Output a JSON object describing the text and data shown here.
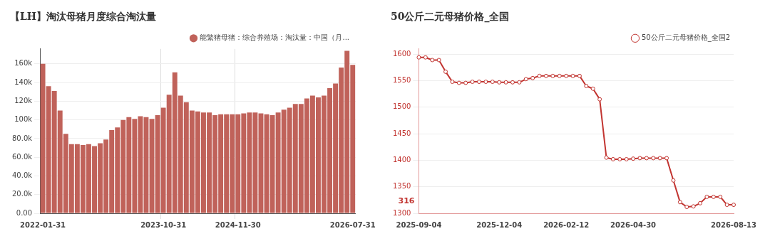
{
  "chart_data": [
    {
      "type": "bar",
      "title": "【LH】淘汰母猪月度综合淘汰量",
      "categories": [
        "2022-01-31",
        null,
        null,
        null,
        null,
        null,
        null,
        null,
        null,
        null,
        null,
        null,
        null,
        null,
        null,
        null,
        null,
        null,
        null,
        null,
        null,
        "2023-10-31",
        null,
        null,
        null,
        null,
        null,
        null,
        null,
        null,
        null,
        null,
        null,
        null,
        "2024-11-30",
        null,
        null,
        null,
        null,
        null,
        null,
        null,
        null,
        null,
        null,
        null,
        null,
        null,
        null,
        null,
        null,
        null,
        null,
        null,
        "2026-07-31"
      ],
      "series": [
        {
          "name": "能繁猪母猪：综合养殖场：淘汰量：中国（月...",
          "color": "#c0625a",
          "values": [
            160000,
            136000,
            131000,
            110000,
            85000,
            74000,
            74000,
            73000,
            74000,
            72000,
            75000,
            79000,
            89000,
            92000,
            100000,
            103000,
            101000,
            104000,
            103000,
            101000,
            105000,
            113000,
            127000,
            151000,
            126000,
            119000,
            110000,
            109000,
            108000,
            108000,
            105000,
            106000,
            106000,
            106000,
            106000,
            107000,
            108000,
            108000,
            107000,
            106000,
            105000,
            108000,
            111000,
            113000,
            117000,
            117000,
            123000,
            126000,
            124000,
            126000,
            134000,
            139000,
            156000,
            174000,
            159000
          ]
        }
      ],
      "ylim": [
        0,
        176000
      ],
      "yticks": [
        {
          "value": 0,
          "label": "0.00"
        },
        {
          "value": 20000,
          "label": "20.0k"
        },
        {
          "value": 40000,
          "label": "40.0k"
        },
        {
          "value": 60000,
          "label": "60.0k"
        },
        {
          "value": 80000,
          "label": "80.0k"
        },
        {
          "value": 100000,
          "label": "100k"
        },
        {
          "value": 120000,
          "label": "120k"
        },
        {
          "value": 140000,
          "label": "140k"
        },
        {
          "value": 160000,
          "label": "160k"
        }
      ],
      "grid": true,
      "legend": "top",
      "marker": "circle"
    },
    {
      "type": "line",
      "title": "50公斤二元母猪价格_全国",
      "categories": [
        "2025-09-04",
        null,
        null,
        null,
        null,
        null,
        null,
        null,
        null,
        null,
        null,
        null,
        "2025-12-04",
        null,
        null,
        null,
        null,
        null,
        null,
        null,
        null,
        null,
        "2026-02-12",
        null,
        null,
        null,
        null,
        null,
        null,
        null,
        null,
        null,
        "2026-04-30",
        null,
        null,
        null,
        null,
        null,
        null,
        null,
        null,
        null,
        null,
        null,
        null,
        null,
        null,
        "2026-08-13"
      ],
      "series": [
        {
          "name": "50公斤二元母猪价格_全国2",
          "color": "#c23531",
          "values": [
            1594,
            1594,
            1589,
            1589,
            1567,
            1548,
            1546,
            1546,
            1548,
            1548,
            1548,
            1548,
            1547,
            1547,
            1547,
            1547,
            1553,
            1555,
            1559,
            1559,
            1559,
            1559,
            1559,
            1559,
            1559,
            1540,
            1535,
            1515,
            1405,
            1402,
            1402,
            1402,
            1403,
            1404,
            1404,
            1404,
            1404,
            1404,
            1362,
            1321,
            1312,
            1313,
            1319,
            1331,
            1331,
            1331,
            1316,
            1316
          ]
        }
      ],
      "ylim": [
        1300,
        1610
      ],
      "yticks": [
        1300,
        1350,
        1400,
        1450,
        1500,
        1550,
        1600
      ],
      "annotations": [
        "316"
      ],
      "grid": "y",
      "legend": "top",
      "marker": "circle",
      "line_style": "solid"
    }
  ]
}
